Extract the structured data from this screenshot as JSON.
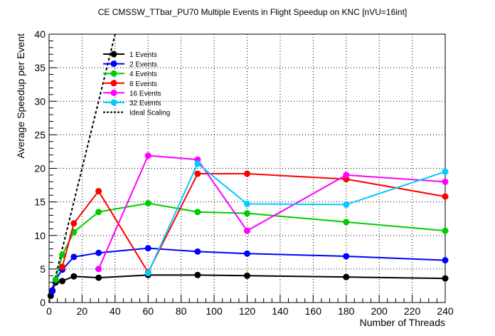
{
  "chart_data": {
    "type": "line",
    "title": "CE CMSSW_TTbar_PU70 Multiple Events in Flight Speedup on KNC [nVU=16int]",
    "xlabel": "Number of Threads",
    "ylabel": "Average Speedup per Event",
    "xlim": [
      0,
      240
    ],
    "ylim": [
      0,
      40
    ],
    "xticks": [
      0,
      20,
      40,
      60,
      80,
      100,
      120,
      140,
      160,
      180,
      200,
      220,
      240
    ],
    "yticks": [
      0,
      5,
      10,
      15,
      20,
      25,
      30,
      35,
      40
    ],
    "grid": "dotted",
    "legend_position": "top-left",
    "series": [
      {
        "name": "1 Events",
        "color": "#000000",
        "x": [
          1,
          2,
          4,
          8,
          15,
          30,
          60,
          90,
          120,
          180,
          240
        ],
        "y": [
          1.0,
          1.8,
          3.0,
          3.2,
          3.9,
          3.7,
          4.1,
          4.1,
          4.0,
          3.8,
          3.6
        ]
      },
      {
        "name": "2 Events",
        "color": "#0000ff",
        "x": [
          2,
          4,
          8,
          15,
          30,
          60,
          90,
          120,
          180,
          240
        ],
        "y": [
          1.7,
          3.4,
          4.9,
          6.8,
          7.4,
          8.1,
          7.6,
          7.3,
          6.9,
          6.3
        ]
      },
      {
        "name": "4 Events",
        "color": "#00cc00",
        "x": [
          4,
          8,
          15,
          30,
          60,
          90,
          120,
          180,
          240
        ],
        "y": [
          3.4,
          7.1,
          10.5,
          13.5,
          14.8,
          13.5,
          13.3,
          12.0,
          10.7
        ]
      },
      {
        "name": "8 Events",
        "color": "#ff0000",
        "x": [
          8,
          15,
          30,
          60,
          90,
          120,
          180,
          240
        ],
        "y": [
          5.3,
          11.8,
          16.6,
          4.5,
          19.2,
          19.2,
          18.4,
          15.8
        ]
      },
      {
        "name": "16 Events",
        "color": "#ff00ff",
        "x": [
          30,
          60,
          90,
          120,
          180,
          240
        ],
        "y": [
          5.0,
          21.9,
          21.3,
          10.7,
          19.0,
          18.0
        ]
      },
      {
        "name": "32 Events",
        "color": "#00ccff",
        "x": [
          60,
          90,
          120,
          180,
          240
        ],
        "y": [
          4.4,
          20.7,
          14.7,
          14.6,
          19.5
        ]
      },
      {
        "name": "Ideal Scaling",
        "color": "#000000",
        "dashed": true,
        "x": [
          0,
          40
        ],
        "y": [
          0,
          40
        ]
      }
    ]
  }
}
